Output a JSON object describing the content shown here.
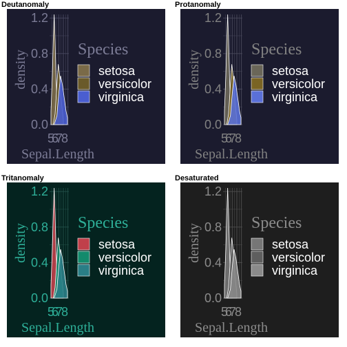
{
  "chart_data": [
    {
      "type": "area",
      "title": "Deutanomaly",
      "xlabel": "Sepal.Length",
      "ylabel": "density",
      "xlim": [
        4.3,
        7.9
      ],
      "ylim": [
        0,
        1.24
      ],
      "x_ticks": [
        "5",
        "6",
        "7",
        "8"
      ],
      "y_ticks": [
        "0.0",
        "0.4",
        "0.8",
        "1.2"
      ],
      "legend_title": "Species",
      "legend_position": "right",
      "grid": true,
      "colors": {
        "background": "#1b1b2e",
        "text": "#7c7c96",
        "grid": "#4a4a62",
        "series": [
          "#7a6a48",
          "#6a5a2a",
          "#4a5ed0"
        ]
      },
      "series": [
        {
          "name": "setosa",
          "x": [
            4.3,
            4.6,
            4.8,
            5.0,
            5.2,
            5.4,
            5.6,
            5.8,
            6.0
          ],
          "values": [
            0.15,
            0.55,
            0.95,
            1.24,
            0.95,
            0.55,
            0.25,
            0.08,
            0.0
          ]
        },
        {
          "name": "versicolor",
          "x": [
            4.8,
            5.2,
            5.6,
            5.9,
            6.2,
            6.6,
            7.0
          ],
          "values": [
            0.0,
            0.12,
            0.45,
            0.68,
            0.55,
            0.25,
            0.05
          ]
        },
        {
          "name": "virginica",
          "x": [
            5.0,
            5.6,
            6.0,
            6.4,
            6.8,
            7.2,
            7.6,
            7.9
          ],
          "values": [
            0.0,
            0.1,
            0.35,
            0.55,
            0.45,
            0.3,
            0.15,
            0.08
          ]
        }
      ]
    },
    {
      "type": "area",
      "title": "Protanomaly",
      "xlabel": "Sepal.Length",
      "ylabel": "density",
      "xlim": [
        4.3,
        7.9
      ],
      "ylim": [
        0,
        1.24
      ],
      "x_ticks": [
        "5",
        "6",
        "7",
        "8"
      ],
      "y_ticks": [
        "0.0",
        "0.4",
        "0.8",
        "1.2"
      ],
      "legend_title": "Species",
      "legend_position": "right",
      "grid": true,
      "colors": {
        "background": "#1b1b2e",
        "text": "#828282",
        "grid": "#4a4a5c",
        "series": [
          "#6a6658",
          "#7a6424",
          "#5a70d8"
        ]
      },
      "series": [
        {
          "name": "setosa",
          "x": [
            4.3,
            4.6,
            4.8,
            5.0,
            5.2,
            5.4,
            5.6,
            5.8,
            6.0
          ],
          "values": [
            0.15,
            0.55,
            0.95,
            1.24,
            0.95,
            0.55,
            0.25,
            0.08,
            0.0
          ]
        },
        {
          "name": "versicolor",
          "x": [
            4.8,
            5.2,
            5.6,
            5.9,
            6.2,
            6.6,
            7.0
          ],
          "values": [
            0.0,
            0.12,
            0.45,
            0.68,
            0.55,
            0.25,
            0.05
          ]
        },
        {
          "name": "virginica",
          "x": [
            5.0,
            5.6,
            6.0,
            6.4,
            6.8,
            7.2,
            7.6,
            7.9
          ],
          "values": [
            0.0,
            0.1,
            0.35,
            0.55,
            0.45,
            0.3,
            0.15,
            0.08
          ]
        }
      ]
    },
    {
      "type": "area",
      "title": "Tritanomaly",
      "xlabel": "Sepal.Length",
      "ylabel": "density",
      "xlim": [
        4.3,
        7.9
      ],
      "ylim": [
        0,
        1.24
      ],
      "x_ticks": [
        "5",
        "6",
        "7",
        "8"
      ],
      "y_ticks": [
        "0.0",
        "0.4",
        "0.8",
        "1.2"
      ],
      "legend_title": "Species",
      "legend_position": "right",
      "grid": true,
      "colors": {
        "background": "#04231f",
        "text": "#2eaf98",
        "grid": "#23524b",
        "series": [
          "#c0404a",
          "#138a6c",
          "#2a7e86"
        ]
      },
      "series": [
        {
          "name": "setosa",
          "x": [
            4.3,
            4.6,
            4.8,
            5.0,
            5.2,
            5.4,
            5.6,
            5.8,
            6.0
          ],
          "values": [
            0.15,
            0.55,
            0.95,
            1.24,
            0.95,
            0.55,
            0.25,
            0.08,
            0.0
          ]
        },
        {
          "name": "versicolor",
          "x": [
            4.8,
            5.2,
            5.6,
            5.9,
            6.2,
            6.6,
            7.0
          ],
          "values": [
            0.0,
            0.12,
            0.45,
            0.68,
            0.55,
            0.25,
            0.05
          ]
        },
        {
          "name": "virginica",
          "x": [
            5.0,
            5.6,
            6.0,
            6.4,
            6.8,
            7.2,
            7.6,
            7.9
          ],
          "values": [
            0.0,
            0.1,
            0.35,
            0.55,
            0.45,
            0.3,
            0.15,
            0.08
          ]
        }
      ]
    },
    {
      "type": "area",
      "title": "Desaturated",
      "xlabel": "Sepal.Length",
      "ylabel": "density",
      "xlim": [
        4.3,
        7.9
      ],
      "ylim": [
        0,
        1.24
      ],
      "x_ticks": [
        "5",
        "6",
        "7",
        "8"
      ],
      "y_ticks": [
        "0.0",
        "0.4",
        "0.8",
        "1.2"
      ],
      "legend_title": "Species",
      "legend_position": "right",
      "grid": true,
      "colors": {
        "background": "#1e1e1e",
        "text": "#8c8c8c",
        "grid": "#4e4e4e",
        "series": [
          "#767676",
          "#5e5e5e",
          "#8a8a8a"
        ]
      },
      "series": [
        {
          "name": "setosa",
          "x": [
            4.3,
            4.6,
            4.8,
            5.0,
            5.2,
            5.4,
            5.6,
            5.8,
            6.0
          ],
          "values": [
            0.15,
            0.55,
            0.95,
            1.24,
            0.95,
            0.55,
            0.25,
            0.08,
            0.0
          ]
        },
        {
          "name": "versicolor",
          "x": [
            4.8,
            5.2,
            5.6,
            5.9,
            6.2,
            6.6,
            7.0
          ],
          "values": [
            0.0,
            0.12,
            0.45,
            0.68,
            0.55,
            0.25,
            0.05
          ]
        },
        {
          "name": "virginica",
          "x": [
            5.0,
            5.6,
            6.0,
            6.4,
            6.8,
            7.2,
            7.6,
            7.9
          ],
          "values": [
            0.0,
            0.1,
            0.35,
            0.55,
            0.45,
            0.3,
            0.15,
            0.08
          ]
        }
      ]
    }
  ]
}
